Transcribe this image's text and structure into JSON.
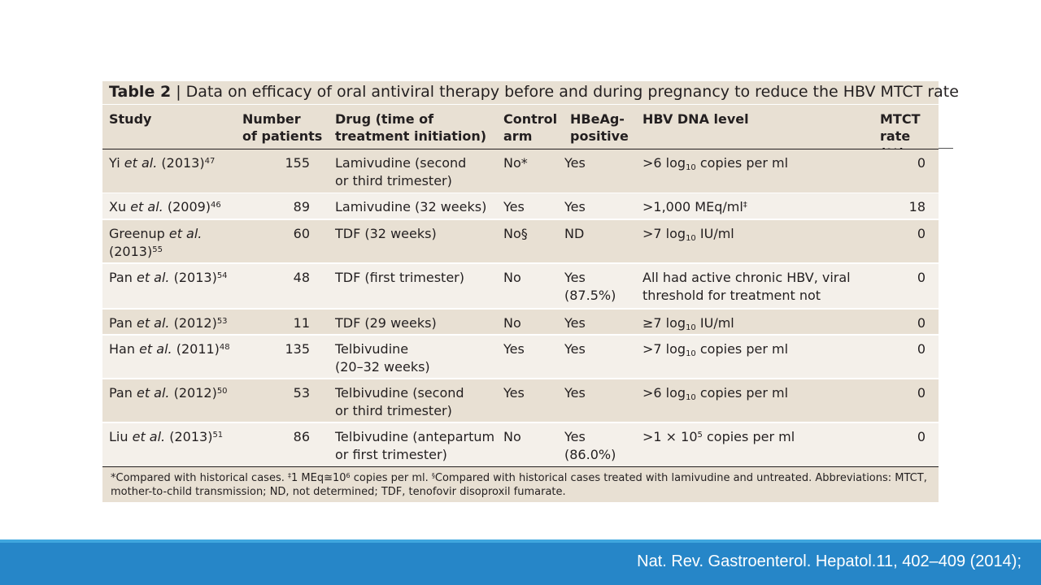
{
  "table": {
    "title_prefix": "Table 2",
    "title_separator": "|",
    "title_text": "Data on efficacy of oral antiviral therapy before and during pregnancy to reduce the HBV MTCT rate",
    "headers": {
      "study": "Study",
      "patients": "Number\nof patients",
      "drug": "Drug (time of\ntreatment initiation)",
      "control": "Control\narm",
      "hbeag": "HBeAg-\npositive",
      "dna": "HBV DNA level",
      "mtct": "MTCT\nrate (%)"
    },
    "rows": [
      {
        "author": "Yi",
        "year": "(2013)",
        "ref": "47",
        "patients": "155",
        "drug": "Lamivudine (second\nor third trimester)",
        "control": "No*",
        "hbeag": "Yes",
        "dna_pre": ">6 log",
        "dna_sub": "10",
        "dna_post": " copies per ml",
        "dna_sup": "",
        "dna_tail": "",
        "mtct": "0"
      },
      {
        "author": "Xu",
        "year": "(2009)",
        "ref": "46",
        "patients": "89",
        "drug": "Lamivudine (32 weeks)",
        "control": "Yes",
        "hbeag": "Yes",
        "dna_pre": ">1,000 MEq/ml",
        "dna_sub": "",
        "dna_post": "",
        "dna_sup": "‡",
        "dna_tail": "",
        "mtct": "18"
      },
      {
        "author": "Greenup",
        "year": "(2013)",
        "ref": "55",
        "patients": "60",
        "drug": "TDF (32 weeks)",
        "control": "No§",
        "hbeag": "ND",
        "dna_pre": ">7 log",
        "dna_sub": "10",
        "dna_post": " IU/ml",
        "dna_sup": "",
        "dna_tail": "",
        "mtct": "0"
      },
      {
        "author": "Pan",
        "year": "(2013)",
        "ref": "54",
        "patients": "48",
        "drug": "TDF (first trimester)",
        "control": "No",
        "hbeag": "Yes\n(87.5%)",
        "dna_pre": "All had active chronic HBV, viral\nthreshold for treatment not reported",
        "dna_sub": "",
        "dna_post": "",
        "dna_sup": "",
        "dna_tail": "",
        "mtct": "0"
      },
      {
        "author": "Pan",
        "year": "(2012)",
        "ref": "53",
        "patients": "11",
        "drug": "TDF (29 weeks)",
        "control": "No",
        "hbeag": "Yes",
        "dna_pre": "≥7 log",
        "dna_sub": "10",
        "dna_post": " IU/ml",
        "dna_sup": "",
        "dna_tail": "",
        "mtct": "0"
      },
      {
        "author": "Han",
        "year": "(2011)",
        "ref": "48",
        "patients": "135",
        "drug": "Telbivudine\n(20–32 weeks)",
        "control": "Yes",
        "hbeag": "Yes",
        "dna_pre": ">7 log",
        "dna_sub": "10",
        "dna_post": " copies per ml",
        "dna_sup": "",
        "dna_tail": "",
        "mtct": "0"
      },
      {
        "author": "Pan",
        "year": "(2012)",
        "ref": "50",
        "patients": "53",
        "drug": "Telbivudine (second\nor third trimester)",
        "control": "Yes",
        "hbeag": "Yes",
        "dna_pre": ">6 log",
        "dna_sub": "10",
        "dna_post": " copies per ml",
        "dna_sup": "",
        "dna_tail": "",
        "mtct": "0"
      },
      {
        "author": "Liu",
        "year": "(2013)",
        "ref": "51",
        "patients": "86",
        "drug": "Telbivudine (antepartum\nor first trimester)",
        "control": "No",
        "hbeag": "Yes\n(86.0%)",
        "dna_pre": ">1 × 10",
        "dna_sub": "",
        "dna_post": "",
        "dna_sup": "5",
        "dna_tail": " copies per ml",
        "mtct": "0"
      }
    ],
    "et_al": "et al.",
    "footnote": {
      "part1": "*Compared with historical cases. ",
      "sup1": "‡",
      "part2": "1 MEq≅10",
      "sup2": "6",
      "part3": " copies per ml. ",
      "sup3": "§",
      "part4": "Compared with historical cases treated with lamivudine and untreated. Abbreviations: MTCT,\nmother-to-child transmission; ND, not determined; TDF, tenofovir disoproxil fumarate."
    }
  },
  "footer": {
    "citation": "Nat. Rev. Gastroenterol. Hepatol.11, 402–409 (2014);"
  },
  "colors": {
    "table_bg": "#e8e0d3",
    "row_light": "#f4f0ea",
    "footer_bar": "#2686c8",
    "footer_topline": "#3fa6de"
  }
}
